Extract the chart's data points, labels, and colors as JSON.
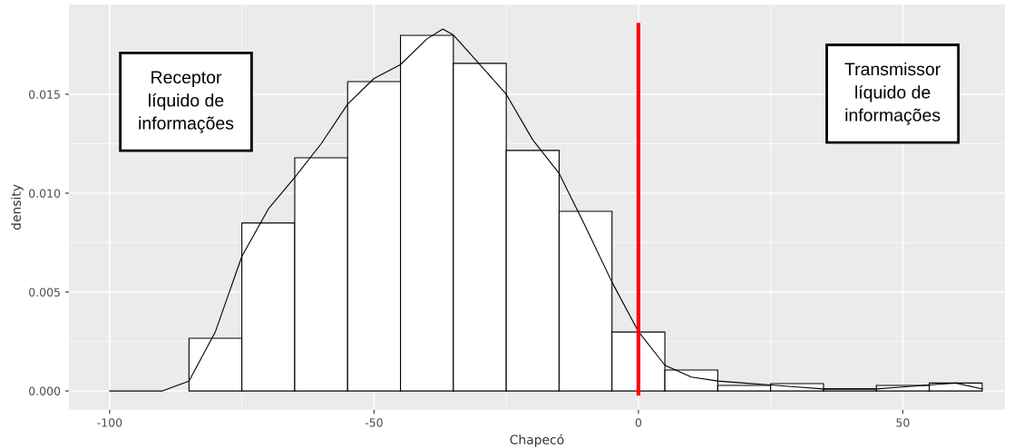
{
  "chart_data": {
    "type": "histogram",
    "xlabel": "Chapecó",
    "ylabel": "density",
    "bins": [
      -85,
      -75,
      -65,
      -55,
      -45,
      -35,
      -25,
      -15,
      -5,
      5,
      15,
      25,
      35,
      45,
      55,
      65
    ],
    "values": [
      0.00266,
      0.00849,
      0.01179,
      0.01564,
      0.01798,
      0.01656,
      0.01216,
      0.00908,
      0.00298,
      0.00106,
      0.00028,
      0.00037,
      0.0001,
      0.00028,
      0.0004
    ],
    "color": "#ffffff",
    "series": [
      {
        "type": "line",
        "color": "#000000",
        "x": [
          -100,
          -90,
          -85,
          -80,
          -75,
          -70,
          -65,
          -60,
          -55,
          -50,
          -45,
          -40,
          -37,
          -35,
          -30,
          -25,
          -20,
          -15,
          -10,
          -5,
          0,
          5,
          10,
          15,
          20,
          25,
          30,
          35,
          40,
          45,
          50,
          55,
          60,
          65
        ],
        "values": [
          0,
          0,
          0.0005,
          0.003,
          0.0068,
          0.0092,
          0.0108,
          0.0125,
          0.0145,
          0.0158,
          0.0165,
          0.0178,
          0.0183,
          0.018,
          0.0165,
          0.015,
          0.0127,
          0.011,
          0.0083,
          0.0055,
          0.003,
          0.0013,
          0.0007,
          0.0005,
          0.0004,
          0.0003,
          0.0002,
          0.0001,
          0.0001,
          0.0001,
          0.0002,
          0.0003,
          0.0004,
          0.0001
        ]
      }
    ],
    "ref_lines": [
      {
        "axis": "x",
        "value": 0,
        "color": "#ff0000"
      }
    ],
    "annotations": [
      "Receptor\nlíquido de\ninformações",
      "Transmissor\nlíquido de\ninformações"
    ],
    "xlim": [
      -107.7,
      69.3
    ],
    "ylim": [
      -0.00096,
      0.01954
    ],
    "xticks": [
      -100,
      -50,
      0,
      50
    ],
    "yticks": [
      {
        "value": 0,
        "label": "0.000"
      },
      {
        "value": 0.005,
        "label": "0.005"
      },
      {
        "value": 0.01,
        "label": "0.010"
      },
      {
        "value": 0.015,
        "label": "0.015"
      }
    ],
    "grid": true,
    "legend": false
  }
}
